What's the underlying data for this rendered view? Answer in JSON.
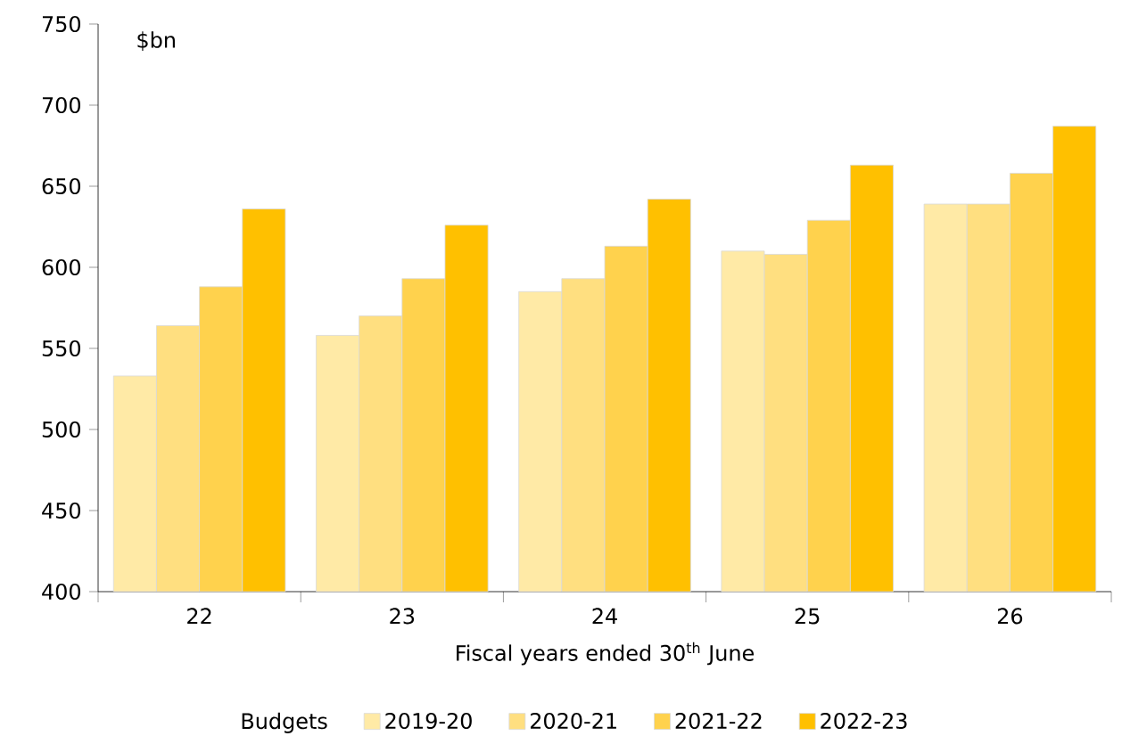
{
  "chart_data": {
    "type": "bar",
    "ylabel": "$bn",
    "xlabel": "Fiscal years ended 30$^{th}$ June",
    "legend_title": "Budgets",
    "legend": "bottom",
    "categories": [
      "22",
      "23",
      "24",
      "25",
      "26"
    ],
    "ylim": [
      400,
      750
    ],
    "yticks": [
      400,
      450,
      500,
      550,
      600,
      650,
      700,
      750
    ],
    "series": [
      {
        "name": "2019-20",
        "color": "#ffeaa6",
        "values": [
          533,
          558,
          585,
          610,
          639
        ]
      },
      {
        "name": "2020-21",
        "color": "#ffdf80",
        "values": [
          564,
          570,
          593,
          608,
          639
        ]
      },
      {
        "name": "2021-22",
        "color": "#ffd24d",
        "values": [
          588,
          593,
          613,
          629,
          658
        ]
      },
      {
        "name": "2022-23",
        "color": "#ffc000",
        "values": [
          636,
          626,
          642,
          663,
          687
        ]
      }
    ]
  }
}
